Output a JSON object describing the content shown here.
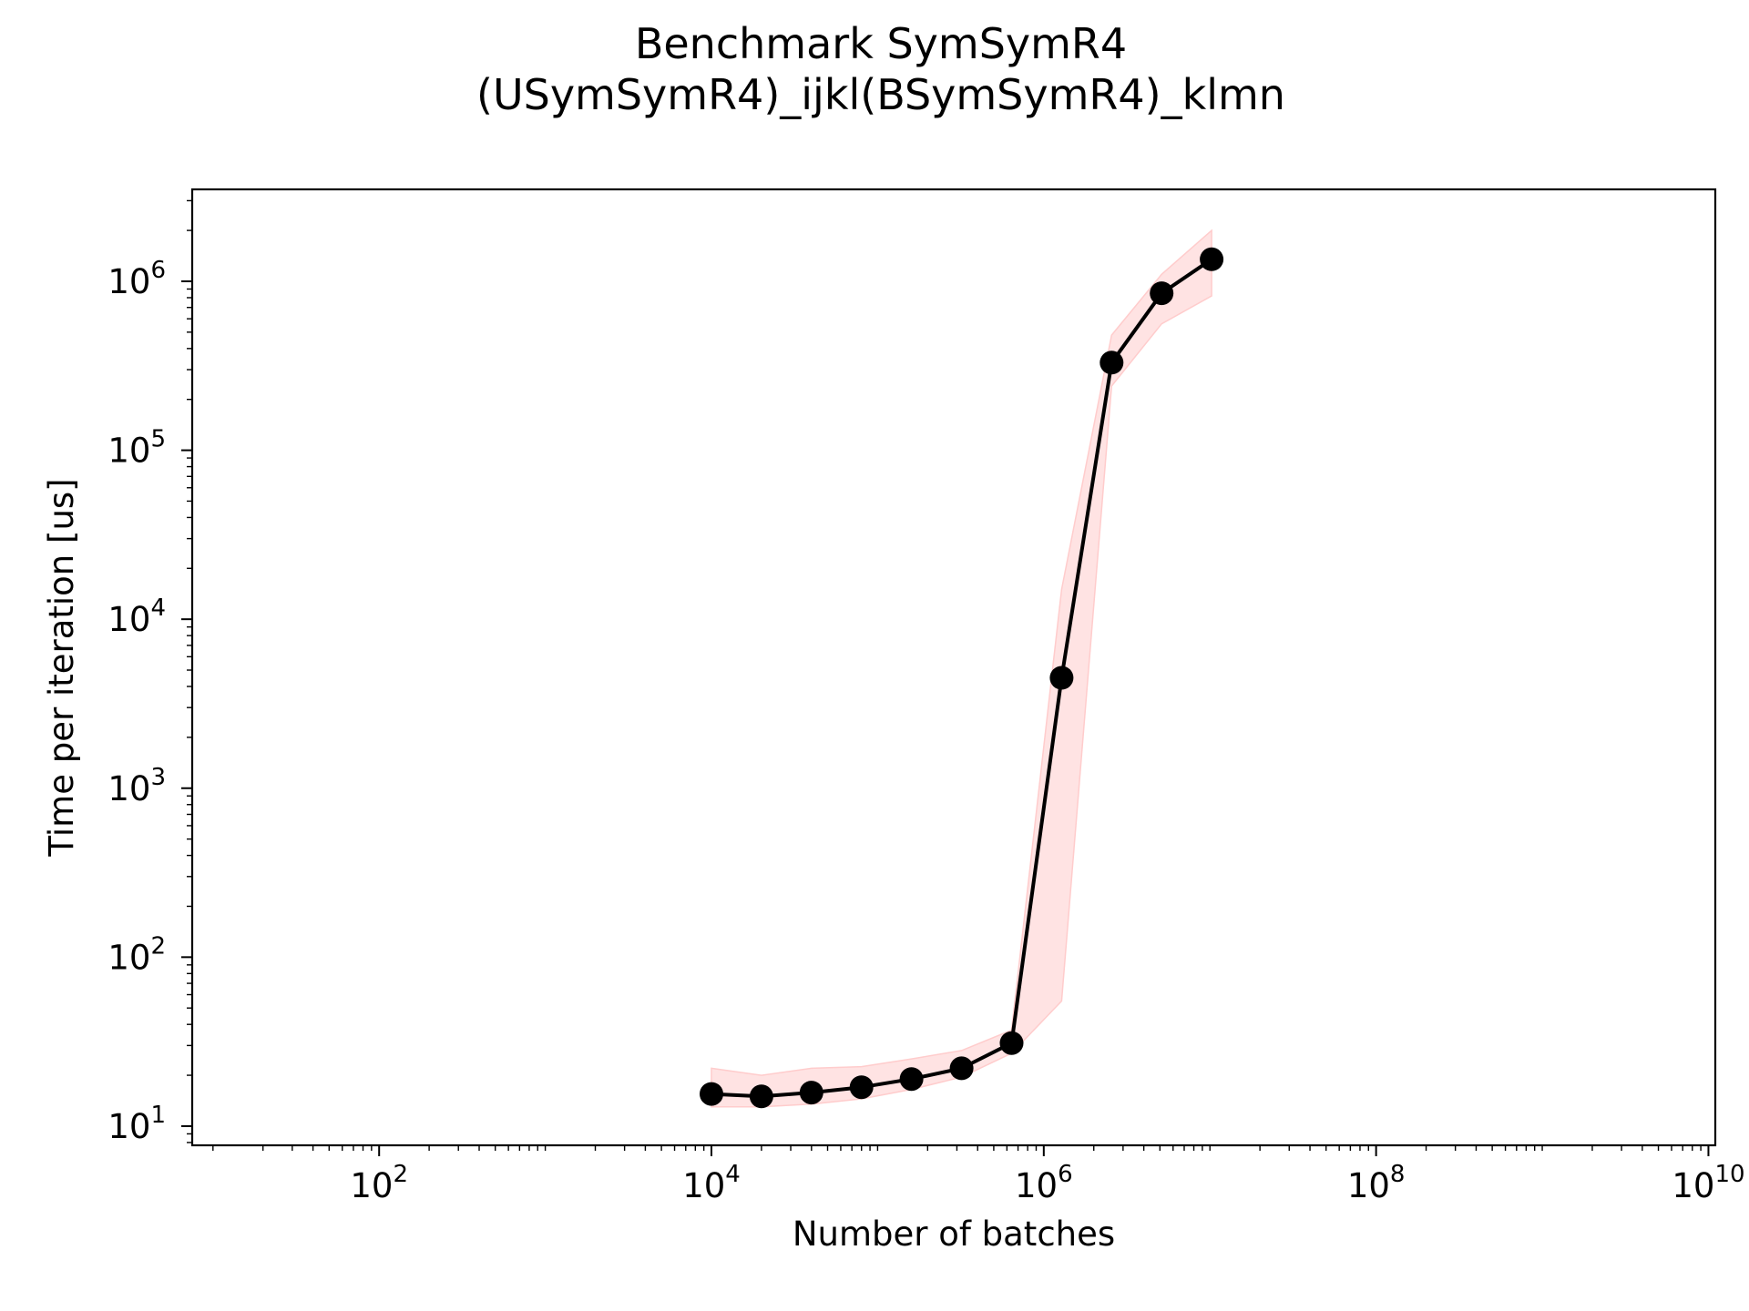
{
  "chart_data": {
    "type": "line",
    "title": "Benchmark SymSymR4",
    "subtitle": "(USymSymR4)_ijkl(BSymSymR4)_klmn",
    "xlabel": "Number of batches",
    "ylabel": "Time per iteration [us]",
    "xscale": "log",
    "yscale": "log",
    "xlim": [
      7.5,
      11000000000
    ],
    "ylim": [
      7.7,
      3500000
    ],
    "grid": false,
    "legend": "none",
    "xticks": [
      {
        "base": "10",
        "exp": "2",
        "value": 100
      },
      {
        "base": "10",
        "exp": "4",
        "value": 10000
      },
      {
        "base": "10",
        "exp": "6",
        "value": 1000000
      },
      {
        "base": "10",
        "exp": "8",
        "value": 100000000
      },
      {
        "base": "10",
        "exp": "10",
        "value": 10000000000
      }
    ],
    "yticks": [
      {
        "base": "10",
        "exp": "1",
        "value": 10
      },
      {
        "base": "10",
        "exp": "2",
        "value": 100
      },
      {
        "base": "10",
        "exp": "3",
        "value": 1000
      },
      {
        "base": "10",
        "exp": "4",
        "value": 10000
      },
      {
        "base": "10",
        "exp": "5",
        "value": 100000
      },
      {
        "base": "10",
        "exp": "6",
        "value": 1000000
      }
    ],
    "series": [
      {
        "line_color": "#000000",
        "band_color": "#ffcccc",
        "x": [
          10000,
          20000,
          40000,
          80000,
          160000,
          320000,
          640000,
          1280000,
          2560000,
          5120000,
          10240000
        ],
        "y": [
          15.5,
          15.0,
          15.8,
          17.0,
          19.0,
          22.0,
          31.0,
          4500,
          330000,
          850000,
          1350000
        ],
        "y_lower": [
          13.0,
          13.0,
          13.5,
          14.5,
          16.5,
          19.5,
          27.0,
          55.0,
          240000,
          560000,
          820000
        ],
        "y_upper": [
          22.0,
          20.0,
          22.0,
          22.5,
          25.0,
          28.0,
          37.0,
          15000,
          480000,
          1100000,
          2000000
        ]
      }
    ]
  }
}
